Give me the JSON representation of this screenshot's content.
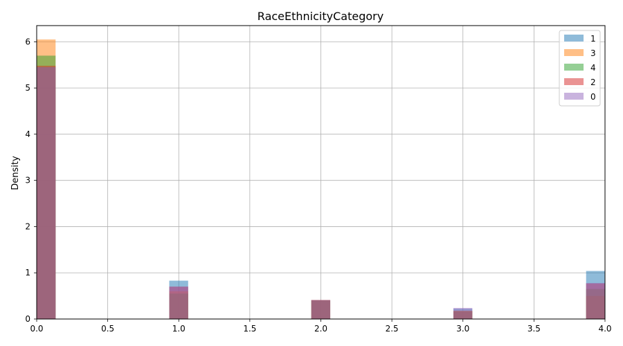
{
  "chart_data": {
    "type": "bar",
    "title": "RaceEthnicityCategory",
    "xlabel": "",
    "ylabel": "Density",
    "xlim": [
      0,
      4
    ],
    "ylim": [
      0,
      6.35
    ],
    "bin_width": 0.133,
    "grid": true,
    "legend_placement": "top-right",
    "xticks": [
      "0.0",
      "0.5",
      "1.0",
      "1.5",
      "2.0",
      "2.5",
      "3.0",
      "3.5",
      "4.0"
    ],
    "yticks": [
      "0",
      "1",
      "2",
      "3",
      "4",
      "5",
      "6"
    ],
    "bins": [
      0.0,
      0.933,
      1.933,
      2.933,
      3.867
    ],
    "series": [
      {
        "name": "1",
        "color": "#1f77b4",
        "values": [
          5.45,
          0.83,
          0.41,
          0.22,
          1.04
        ]
      },
      {
        "name": "3",
        "color": "#ff7f0e",
        "values": [
          6.05,
          0.6,
          0.41,
          0.18,
          0.5
        ]
      },
      {
        "name": "4",
        "color": "#2ca02c",
        "values": [
          5.7,
          0.55,
          0.4,
          0.17,
          0.65
        ]
      },
      {
        "name": "2",
        "color": "#d62728",
        "values": [
          5.48,
          0.7,
          0.41,
          0.17,
          0.77
        ]
      },
      {
        "name": "0",
        "color": "#9467bd",
        "values": [
          5.45,
          0.7,
          0.41,
          0.24,
          0.78
        ]
      }
    ]
  }
}
